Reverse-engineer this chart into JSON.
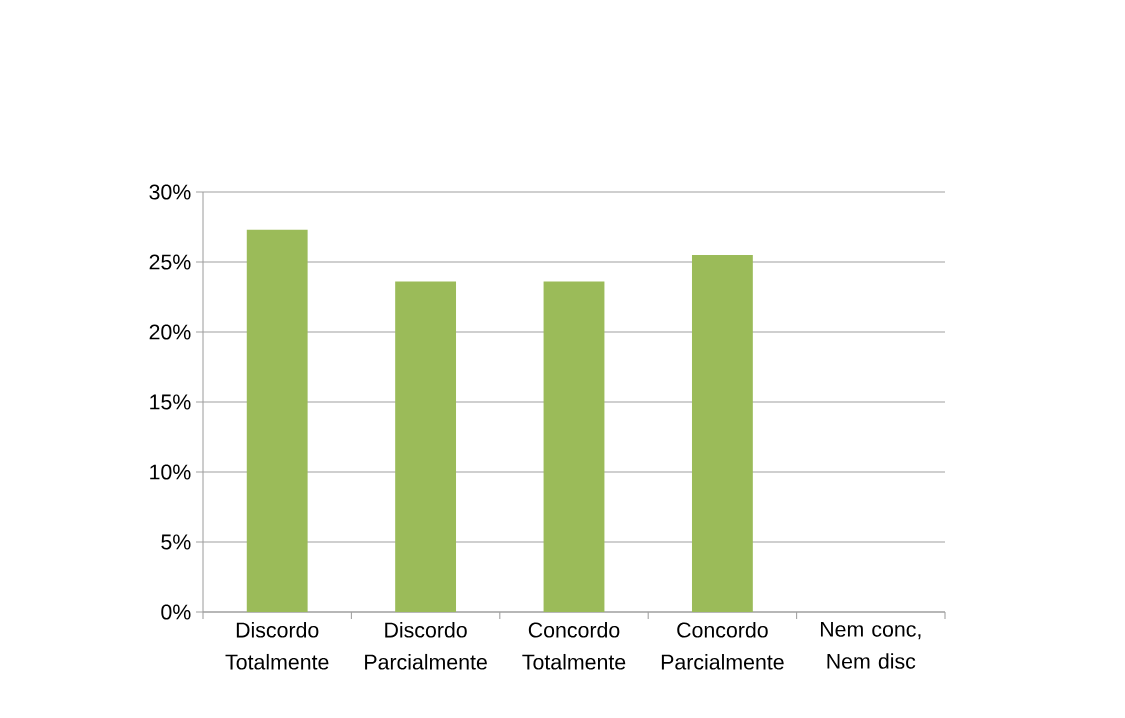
{
  "chart_data": {
    "type": "bar",
    "categories": [
      "Discordo Totalmente",
      "Discordo Parcialmente",
      "Concordo Totalmente",
      "Concordo Parcialmente",
      "Nem conc, Nem disc"
    ],
    "values": [
      27.3,
      23.6,
      23.6,
      25.5,
      0
    ],
    "color": "#9bbb59",
    "ylim": [
      0,
      30
    ],
    "yticks": [
      {
        "value": 0,
        "label": "0%"
      },
      {
        "value": 5,
        "label": "5%"
      },
      {
        "value": 10,
        "label": "10%"
      },
      {
        "value": 15,
        "label": "15%"
      },
      {
        "value": 20,
        "label": "20%"
      },
      {
        "value": 25,
        "label": "25%"
      },
      {
        "value": 30,
        "label": "30%"
      }
    ],
    "grid": "y"
  }
}
